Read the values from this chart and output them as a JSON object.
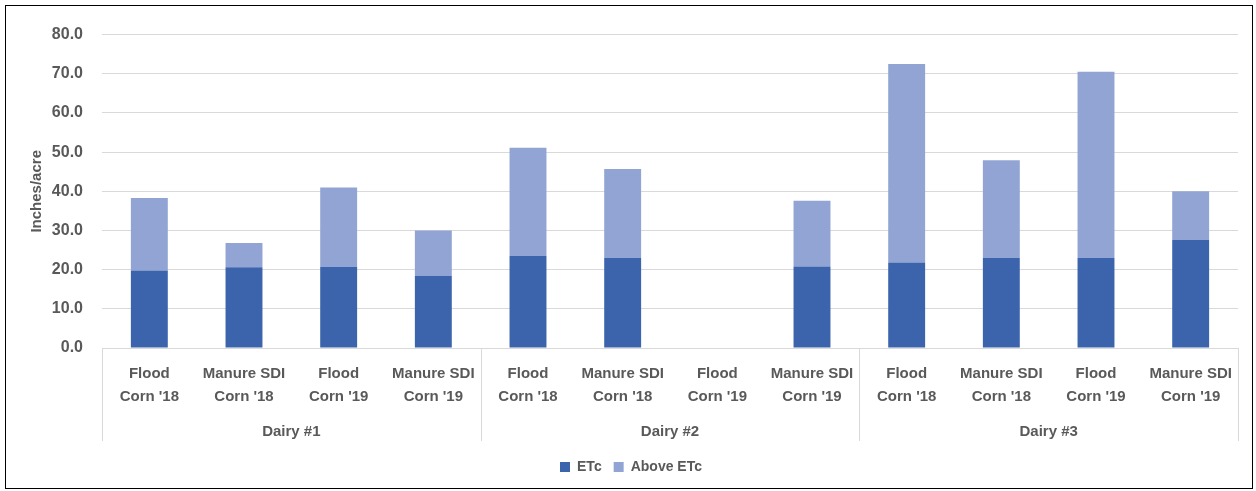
{
  "chart_data": {
    "type": "bar",
    "stacked": true,
    "ylabel": "Inches/acre",
    "categories": [
      "Flood\nCorn '18",
      "Manure SDI\nCorn '18",
      "Flood\nCorn '19",
      "Manure SDI\nCorn '19",
      "Flood\nCorn '18",
      "Manure SDI\nCorn '18",
      "Flood\nCorn '19",
      "Manure SDI\nCorn '19",
      "Flood\nCorn '18",
      "Manure SDI\nCorn '18",
      "Flood\nCorn '19",
      "Manure SDI\nCorn '19"
    ],
    "series": [
      {
        "name": "ETc",
        "color": "#3c64ac",
        "values": [
          19.8,
          20.6,
          20.7,
          18.4,
          23.5,
          23.0,
          null,
          20.8,
          21.8,
          23.0,
          23.0,
          27.6
        ]
      },
      {
        "name": "Above ETc",
        "color": "#91a4d3",
        "values": [
          18.5,
          6.2,
          20.3,
          11.6,
          27.6,
          22.7,
          null,
          16.8,
          50.7,
          24.9,
          47.5,
          12.4
        ]
      }
    ],
    "ylim": [
      0,
      80
    ],
    "yticks": [
      {
        "value": 0,
        "label": "0.0"
      },
      {
        "value": 10,
        "label": "10.0"
      },
      {
        "value": 20,
        "label": "20.0"
      },
      {
        "value": 30,
        "label": "30.0"
      },
      {
        "value": 40,
        "label": "40.0"
      },
      {
        "value": 50,
        "label": "50.0"
      },
      {
        "value": 60,
        "label": "60.0"
      },
      {
        "value": 70,
        "label": "70.0"
      },
      {
        "value": 80,
        "label": "80.0"
      }
    ],
    "grid": "y",
    "legend": "bottom",
    "annotations": [
      "Dairy #1",
      "Dairy #2",
      "Dairy #3"
    ]
  }
}
